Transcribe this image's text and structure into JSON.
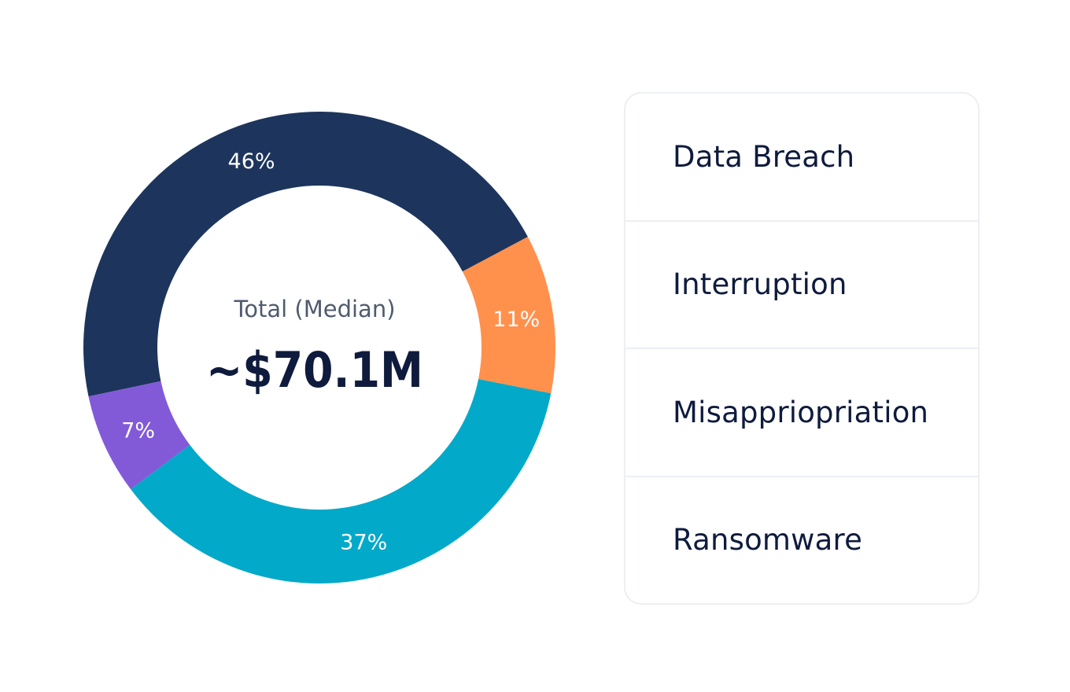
{
  "chart_data": {
    "type": "pie",
    "center_label": "Total (Median)",
    "center_value": "~$70.1M",
    "slices": [
      {
        "label": "46%",
        "value": 46,
        "color": "#1d355c"
      },
      {
        "label": "11%",
        "value": 11,
        "color": "#ff914d"
      },
      {
        "label": "37%",
        "value": 37,
        "color": "#03a9c9"
      },
      {
        "label": "7%",
        "value": 7,
        "color": "#825ad8"
      }
    ]
  },
  "legend": {
    "items": [
      {
        "label": "Data Breach"
      },
      {
        "label": "Interruption"
      },
      {
        "label": "Misappriopriation"
      },
      {
        "label": "Ransomware"
      }
    ]
  },
  "colors": {
    "center_label": "#4f5b6e",
    "center_value": "#0f1b3d",
    "slice_label": "#ffffff"
  }
}
